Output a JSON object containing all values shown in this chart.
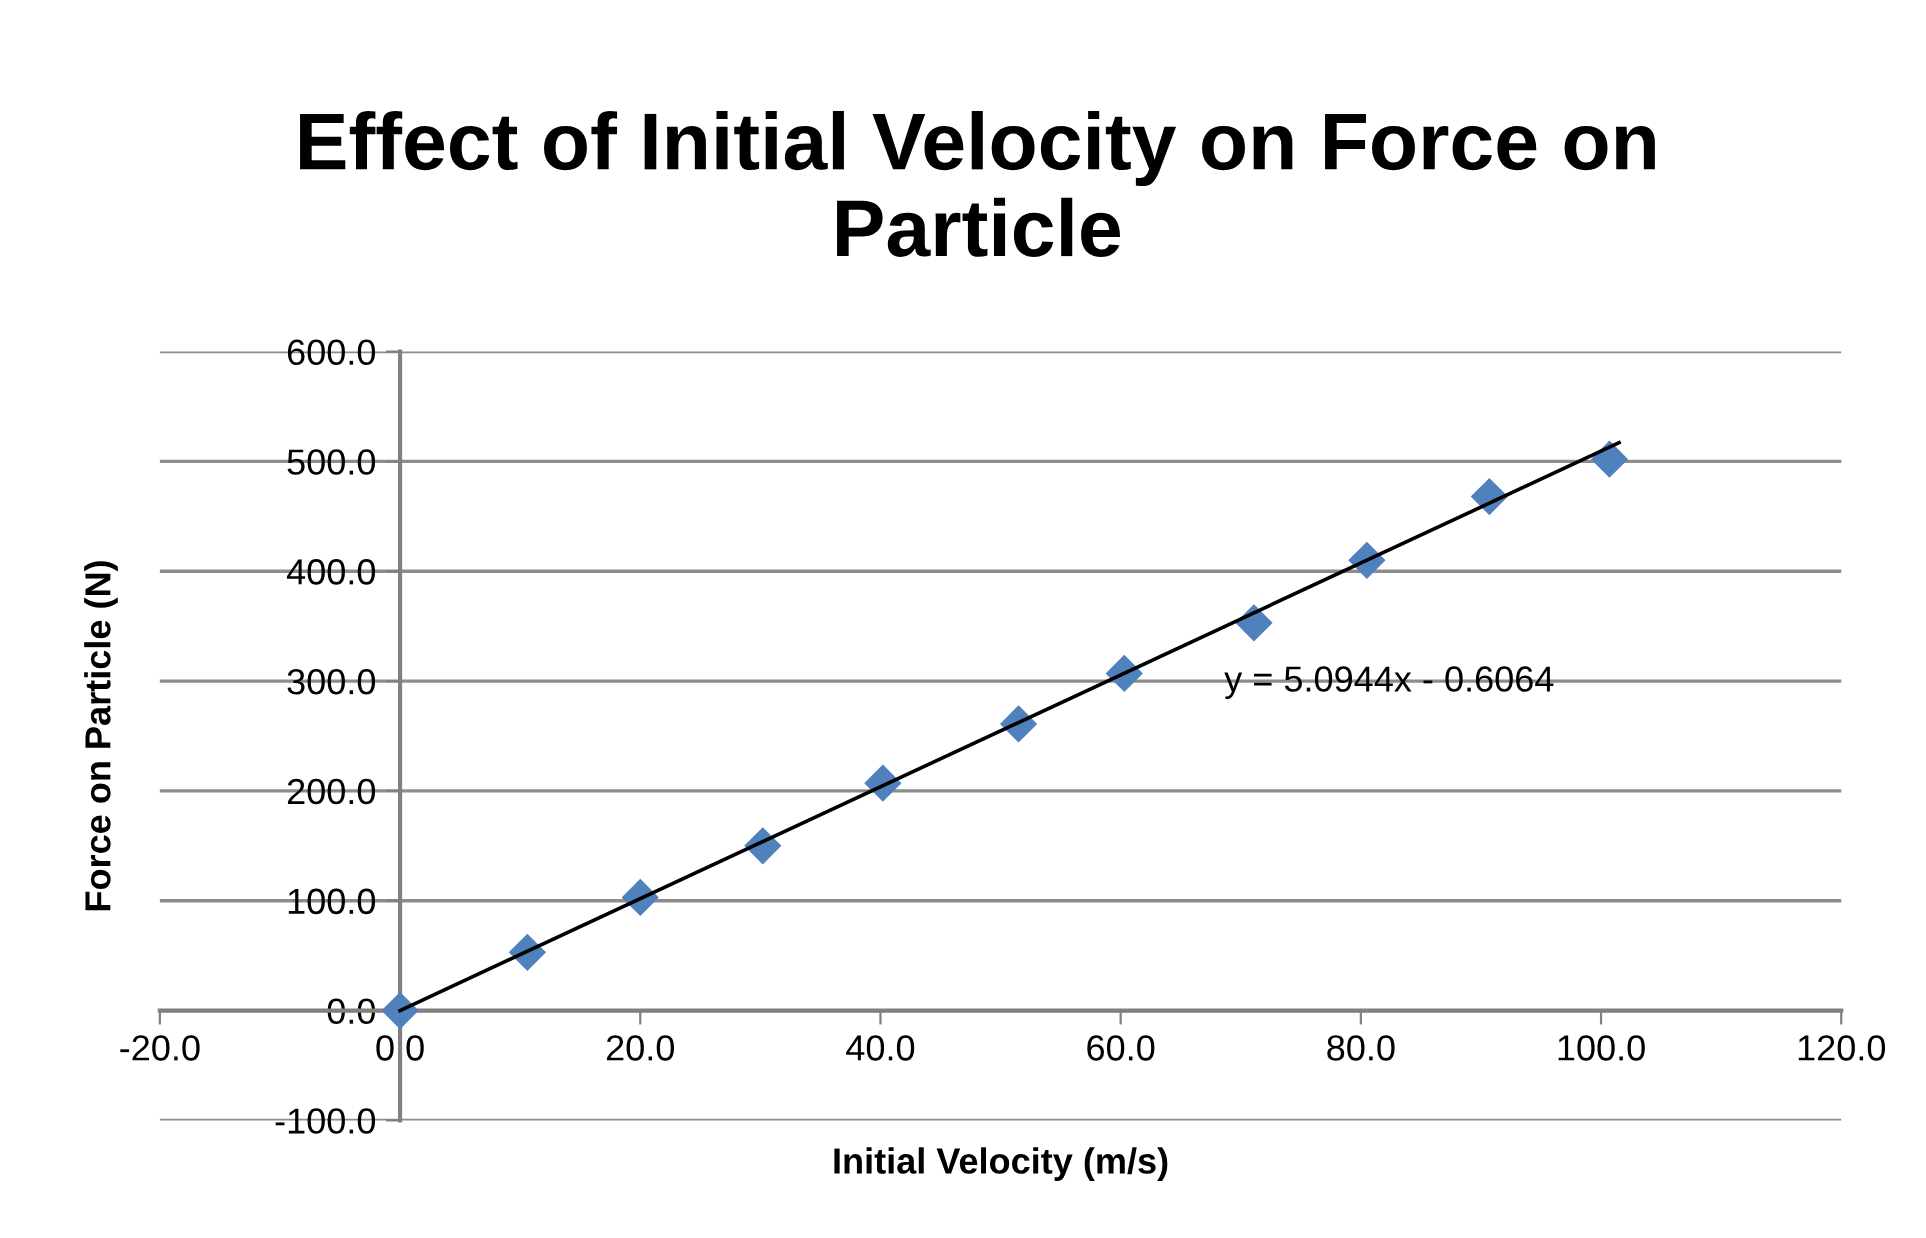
{
  "chart_data": {
    "type": "scatter",
    "title": "Effect of Initial Velocity on Force on Particle",
    "xlabel": "Initial Velocity (m/s)",
    "ylabel": "Force on Particle (N)",
    "xlim": [
      -20,
      120
    ],
    "ylim": [
      -100,
      600
    ],
    "xticks": [
      {
        "value": -20,
        "label": "-20.0"
      },
      {
        "value": 0,
        "label": "0.0"
      },
      {
        "value": 20,
        "label": "20.0"
      },
      {
        "value": 40,
        "label": "40.0"
      },
      {
        "value": 60,
        "label": "60.0"
      },
      {
        "value": 80,
        "label": "80.0"
      },
      {
        "value": 100,
        "label": "100.0"
      },
      {
        "value": 120,
        "label": "120.0"
      }
    ],
    "yticks": [
      {
        "value": -100,
        "label": "-100.0"
      },
      {
        "value": 0,
        "label": "0.0"
      },
      {
        "value": 100,
        "label": "100.0"
      },
      {
        "value": 200,
        "label": "200.0"
      },
      {
        "value": 300,
        "label": "300.0"
      },
      {
        "value": 400,
        "label": "400.0"
      },
      {
        "value": 500,
        "label": "500.0"
      },
      {
        "value": 600,
        "label": "600.0"
      }
    ],
    "grid": "y",
    "marker": "diamond",
    "series": [
      {
        "color": "#4f81bd",
        "x": [
          0,
          10.6,
          20.0,
          30.2,
          40.2,
          51.5,
          60.3,
          71.1,
          80.5,
          90.7,
          100.7
        ],
        "values": [
          0,
          53,
          103,
          150,
          207,
          261,
          307,
          353,
          410,
          468,
          502
        ]
      },
      {
        "type": "line",
        "color": "#000000",
        "marker": "none",
        "x": [
          0,
          101.5
        ],
        "values": [
          0,
          517
        ]
      }
    ],
    "annotations": [
      "y = 5.0944x - 0.6064"
    ]
  }
}
